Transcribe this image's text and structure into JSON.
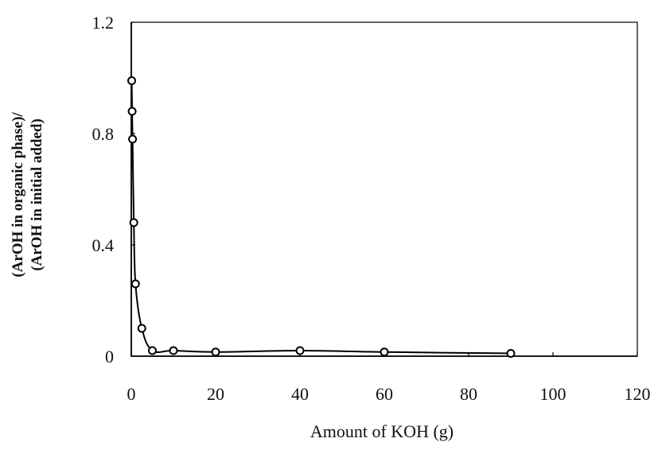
{
  "chart_data": {
    "type": "line",
    "title": "",
    "xlabel": "Amount of KOH (g)",
    "ylabel_lines": [
      "(ArOH in organic phase)/",
      "(ArOH in initial added)"
    ],
    "xlim": [
      0,
      120
    ],
    "ylim": [
      0,
      1.2
    ],
    "x_ticks": [
      0,
      20,
      40,
      60,
      80,
      100,
      120
    ],
    "y_ticks": [
      0,
      0.4,
      0.8,
      1.2
    ],
    "x_tick_labels": [
      "0",
      "20",
      "40",
      "60",
      "80",
      "100",
      "120"
    ],
    "y_tick_labels": [
      "0",
      "0.4",
      "0.8",
      "1.2"
    ],
    "grid": false,
    "legend": "none",
    "colors": {
      "line": "#000000",
      "marker_fill": "#ffffff",
      "axis": "#000000"
    },
    "series": [
      {
        "marker": "open-circle",
        "x": [
          0.1,
          0.2,
          0.3,
          0.6,
          1.0,
          2.5,
          5,
          10,
          20,
          40,
          60,
          90
        ],
        "y": [
          0.99,
          0.88,
          0.78,
          0.48,
          0.26,
          0.1,
          0.02,
          0.02,
          0.015,
          0.02,
          0.015,
          0.01
        ]
      }
    ]
  }
}
